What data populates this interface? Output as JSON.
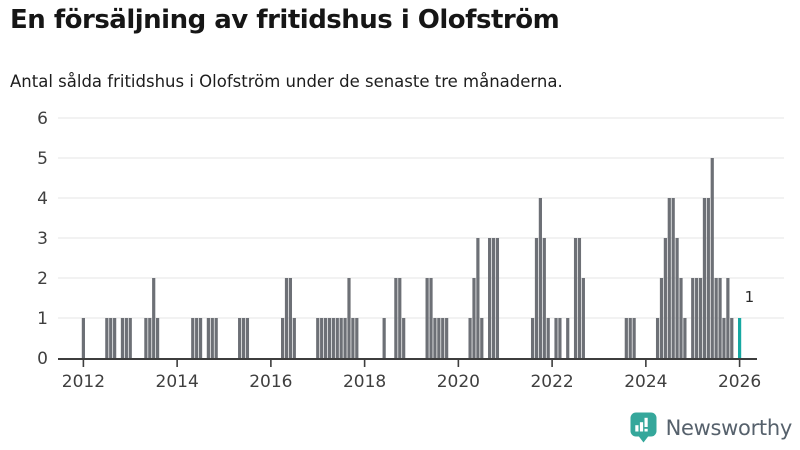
{
  "header": {
    "title": "En försäljning av fritidshus i Olofström",
    "subtitle": "Antal sålda fritidshus i Olofström under de senaste tre månaderna."
  },
  "annotation": {
    "last_value_label": "1"
  },
  "logo": {
    "text": "Newsworthy",
    "icon": "newsworthy-speech-bubble-chart-icon"
  },
  "colors": {
    "bar": "#6d7076",
    "highlight": "#16a8a2",
    "gridline": "#e9e9e9",
    "axis_line": "#3d3d3d",
    "axis_text": "#3f3f3f",
    "title_text": "#161616",
    "logo_teal": "#35a79b",
    "logo_text": "#56616c",
    "background": "#ffffff"
  },
  "chart_data": {
    "type": "bar",
    "title": "En försäljning av fritidshus i Olofström",
    "subtitle": "Antal sålda fritidshus i Olofström under de senaste tre månaderna.",
    "frequency": "monthly",
    "start_month": "2011-07",
    "end_month": "2026-06",
    "values": [
      0,
      0,
      0,
      0,
      0,
      0,
      1,
      0,
      0,
      0,
      0,
      0,
      1,
      1,
      1,
      0,
      1,
      1,
      1,
      0,
      0,
      0,
      1,
      1,
      2,
      1,
      0,
      0,
      0,
      0,
      0,
      0,
      0,
      0,
      1,
      1,
      1,
      0,
      1,
      1,
      1,
      0,
      0,
      0,
      0,
      0,
      1,
      1,
      1,
      0,
      0,
      0,
      0,
      0,
      0,
      0,
      0,
      1,
      2,
      2,
      1,
      0,
      0,
      0,
      0,
      0,
      1,
      1,
      1,
      1,
      1,
      1,
      1,
      1,
      2,
      1,
      1,
      0,
      0,
      0,
      0,
      0,
      0,
      1,
      0,
      0,
      2,
      2,
      1,
      0,
      0,
      0,
      0,
      0,
      2,
      2,
      1,
      1,
      1,
      1,
      0,
      0,
      0,
      0,
      0,
      1,
      2,
      3,
      1,
      0,
      3,
      3,
      3,
      0,
      0,
      0,
      0,
      0,
      0,
      0,
      0,
      1,
      3,
      4,
      3,
      1,
      0,
      1,
      1,
      0,
      1,
      0,
      3,
      3,
      2,
      0,
      0,
      0,
      0,
      0,
      0,
      0,
      0,
      0,
      0,
      1,
      1,
      1,
      0,
      0,
      0,
      0,
      0,
      1,
      2,
      3,
      4,
      4,
      3,
      2,
      1,
      0,
      2,
      2,
      2,
      4,
      4,
      5,
      2,
      2,
      1,
      2,
      1,
      0,
      1,
      0,
      0,
      0,
      0,
      0
    ],
    "highlight_last_bar": {
      "month": "2026-01",
      "index": 174,
      "value": 1,
      "label": "1",
      "color": "#16a8a2"
    },
    "x_ticks": [
      "2012",
      "2014",
      "2016",
      "2018",
      "2020",
      "2022",
      "2024",
      "2026"
    ],
    "x_tick_month_indices": [
      6,
      30,
      54,
      78,
      102,
      126,
      150,
      174
    ],
    "y_ticks": [
      "0",
      "1",
      "2",
      "3",
      "4",
      "5",
      "6"
    ],
    "ylim": [
      0,
      6
    ],
    "grid": "horizontal",
    "legend": "none"
  }
}
